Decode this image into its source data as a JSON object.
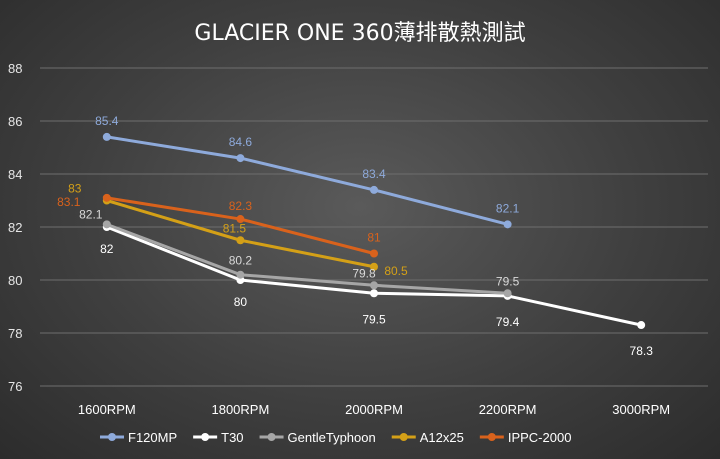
{
  "chart_data": {
    "type": "line",
    "title": "GLACIER ONE 360薄排散熱測試",
    "xlabel": "",
    "ylabel": "",
    "categories": [
      "1600RPM",
      "1800RPM",
      "2000RPM",
      "2200RPM",
      "3000RPM"
    ],
    "ylim": [
      76,
      88
    ],
    "yticks": [
      76,
      78,
      80,
      82,
      84,
      86,
      88
    ],
    "grid": true,
    "legend_position": "bottom",
    "series": [
      {
        "name": "F120MP",
        "color": "#8eaadb",
        "values": [
          85.4,
          84.6,
          83.4,
          82.1,
          null
        ],
        "labels": [
          "85.4",
          "84.6",
          "83.4",
          "82.1",
          null
        ]
      },
      {
        "name": "T30",
        "color": "#ffffff",
        "values": [
          82,
          80,
          79.5,
          79.4,
          78.3
        ],
        "labels": [
          "82",
          "80",
          "79.5",
          "79.4",
          "78.3"
        ]
      },
      {
        "name": "GentleTyphoon",
        "color": "#a6a6a6",
        "values": [
          82.1,
          80.2,
          79.8,
          79.5,
          null
        ],
        "labels": [
          "82.1",
          "80.2",
          "79.8",
          "79.5",
          null
        ]
      },
      {
        "name": "A12x25",
        "color": "#d4a017",
        "values": [
          83,
          81.5,
          80.5,
          null,
          null
        ],
        "labels": [
          "83",
          "81.5",
          "80.5",
          null,
          null
        ]
      },
      {
        "name": "IPPC-2000",
        "color": "#d9621c",
        "values": [
          83.1,
          82.3,
          81,
          null,
          null
        ],
        "labels": [
          "83.1",
          "82.3",
          "81",
          null,
          null
        ]
      }
    ]
  }
}
